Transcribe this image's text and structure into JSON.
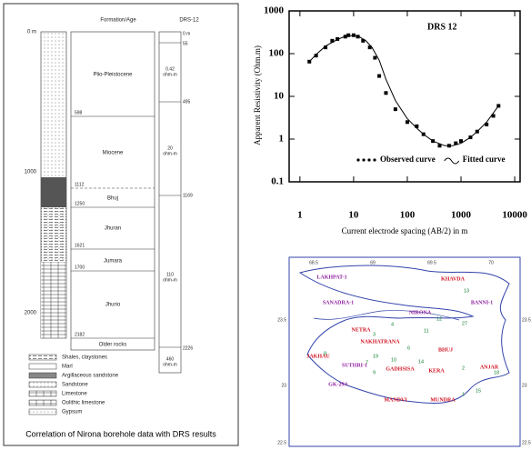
{
  "chart_data": {
    "type": "scatter",
    "title": "DRS 12",
    "x_label": "Current electrode spacing (AB/2) in m",
    "y_label": "Apparent Resistivity (Ohm.m)",
    "log_x": true,
    "log_y": true,
    "xlim": [
      0.63,
      12600
    ],
    "ylim": [
      0.1,
      1000
    ],
    "xticks": [
      1,
      10,
      100,
      1000,
      10000
    ],
    "yticks": [
      0.1,
      1,
      10,
      100,
      1000
    ],
    "legend": "lower right",
    "series": [
      {
        "name": "Observed curve",
        "color": "#000000",
        "style": "points",
        "x": [
          1.5,
          2,
          3,
          4,
          5,
          7,
          8,
          10,
          12,
          15,
          20,
          25,
          30,
          40,
          60,
          100,
          150,
          200,
          300,
          400,
          600,
          800,
          1000,
          1500,
          2000,
          3000,
          4000,
          5000
        ],
        "values": [
          65,
          90,
          140,
          200,
          220,
          250,
          270,
          270,
          250,
          200,
          140,
          80,
          30,
          12,
          5,
          2.5,
          2,
          1.3,
          0.9,
          0.7,
          0.7,
          0.8,
          0.9,
          1.1,
          1.5,
          2.2,
          3.5,
          6
        ]
      },
      {
        "name": "Fitted curve",
        "color": "#000000",
        "style": "line",
        "x": [
          1.5,
          2,
          3,
          5,
          7,
          10,
          13,
          17,
          22,
          30,
          40,
          60,
          100,
          150,
          200,
          300,
          500,
          700,
          1000,
          1500,
          2000,
          3000,
          5000
        ],
        "values": [
          65,
          95,
          150,
          215,
          255,
          265,
          245,
          200,
          140,
          70,
          25,
          8,
          3,
          1.8,
          1.3,
          0.9,
          0.7,
          0.7,
          0.8,
          1.1,
          1.5,
          2.5,
          6
        ]
      }
    ]
  },
  "borehole": {
    "formation_header": "Formation/Age",
    "drs_header": "DRS-12",
    "depth_labels": [
      "0 m",
      "1000",
      "2000"
    ],
    "formations": [
      "Plio-Pleistocene",
      "Miocene",
      "Bhuj",
      "Jhuran",
      "Jumara",
      "Jhurio",
      "Older rocks"
    ],
    "boundaries": [
      "598",
      "1112",
      "1250",
      "1621",
      "1700",
      "2182"
    ],
    "drs_depths": [
      "0 m",
      "55",
      "495",
      "1169",
      "2226"
    ],
    "drs_layers": [
      {
        "value": "0.42",
        "unit": "ohm-m"
      },
      {
        "value": "20",
        "unit": "ohm-m"
      },
      {
        "value": "110",
        "unit": "ohm-m"
      },
      {
        "value": "460",
        "unit": "ohm-m"
      }
    ],
    "legend": [
      "Shales, claystones",
      "Marl",
      "Argillaceous sandstone",
      "Sandstone",
      "Limestone",
      "Oolithic limestone",
      "Gypsum"
    ],
    "caption": "Correlation of Nirona borehole data with DRS results"
  },
  "map": {
    "lon_labels": [
      "68.5",
      "69",
      "69.5",
      "70"
    ],
    "lat_labels": [
      "23.5",
      "23",
      "22.5"
    ],
    "places": [
      "LAKHPAT-1",
      "KHAVDA",
      "SANADRA-1",
      "BANNI-1",
      "NIRONA",
      "NETRA",
      "NAKHATRANA",
      "BHUJ",
      "JAKHAU",
      "SUTHRI-1",
      "GADHSISA",
      "KERA",
      "ANJAR",
      "GK-29A",
      "MANDVI",
      "MUNDRA"
    ],
    "drs_points": [
      "13",
      "12",
      "27",
      "4",
      "3",
      "11",
      "6",
      "19",
      "14",
      "10",
      "8",
      "7",
      "9",
      "2",
      "18",
      "1",
      "15"
    ]
  }
}
